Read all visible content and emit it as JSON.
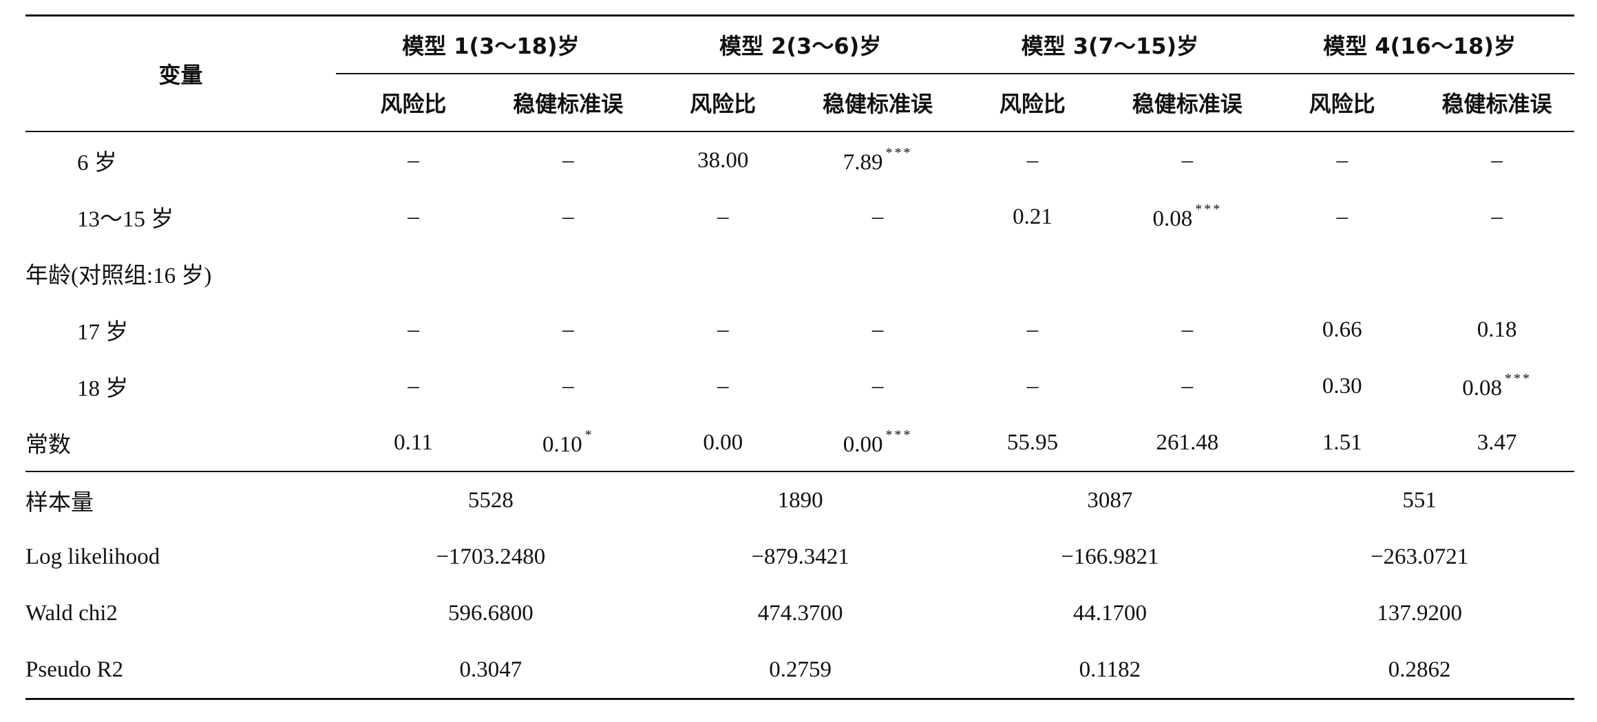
{
  "table": {
    "header": {
      "variable": "变量",
      "models": [
        {
          "title": "模型 1(3～18)岁",
          "columns": [
            "风险比",
            "稳健标准误"
          ]
        },
        {
          "title": "模型 2(3～6)岁",
          "columns": [
            "风险比",
            "稳健标准误"
          ]
        },
        {
          "title": "模型 3(7～15)岁",
          "columns": [
            "风险比",
            "稳健标准误"
          ]
        },
        {
          "title": "模型 4(16～18)岁",
          "columns": [
            "风险比",
            "稳健标准误"
          ]
        }
      ]
    },
    "groups": [
      {
        "rows": [
          {
            "label": "6 岁",
            "cells": [
              "–",
              "–",
              "38.00",
              {
                "text": "7.89",
                "note": "***"
              },
              "–",
              "–",
              "–",
              "–"
            ]
          },
          {
            "label": "13～15 岁",
            "cells": [
              "–",
              "–",
              "–",
              "–",
              "0.21",
              {
                "text": "0.08",
                "note": "***"
              },
              "–",
              "–"
            ]
          }
        ]
      },
      {
        "label": "年龄(对照组:16 岁)",
        "rows": [
          {
            "label": "17 岁",
            "cells": [
              "–",
              "–",
              "–",
              "–",
              "–",
              "–",
              "0.66",
              "0.18"
            ]
          },
          {
            "label": "18 岁",
            "cells": [
              "–",
              "–",
              "–",
              "–",
              "–",
              "–",
              "0.30",
              {
                "text": "0.08",
                "note": "***"
              }
            ]
          }
        ]
      }
    ],
    "constant": {
      "label": "常数",
      "cells": [
        "0.11",
        {
          "text": "0.10",
          "note": "*"
        },
        "0.00",
        {
          "text": "0.00",
          "note": "***"
        },
        "55.95",
        "261.48",
        "1.51",
        "3.47"
      ]
    },
    "stats": [
      {
        "label": "样本量",
        "values": [
          "5528",
          "1890",
          "3087",
          "551"
        ]
      },
      {
        "label": "Log likelihood",
        "values": [
          "−1703.2480",
          "−879.3421",
          "−166.9821",
          "−263.0721"
        ]
      },
      {
        "label": "Wald chi2",
        "values": [
          "596.6800",
          "474.3700",
          "44.1700",
          "137.9200"
        ]
      },
      {
        "label": "Pseudo R2",
        "values": [
          "0.3047",
          "0.2759",
          "0.1182",
          "0.2862"
        ]
      }
    ]
  }
}
